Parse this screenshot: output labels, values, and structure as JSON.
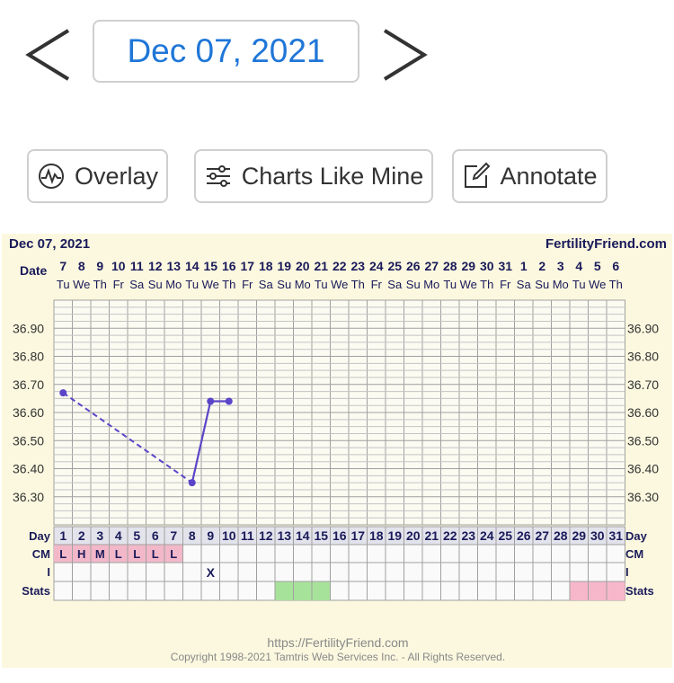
{
  "nav": {
    "date": "Dec 07, 2021",
    "prev_icon": "chevron-left-icon",
    "next_icon": "chevron-right-icon"
  },
  "toolbar": {
    "overlay_label": "Overlay",
    "overlay_icon": "pulse-circle-icon",
    "charts_like_mine_label": "Charts Like Mine",
    "charts_like_mine_icon": "sliders-icon",
    "annotate_label": "Annotate",
    "annotate_icon": "edit-icon"
  },
  "chart_header": {
    "title": "Dec 07, 2021",
    "brand": "FertilityFriend.com",
    "date_row_label": "Date",
    "day_row_label": "Day",
    "cm_row_label": "CM",
    "i_row_label": "I",
    "stats_row_label": "Stats"
  },
  "footer": {
    "url": "https://FertilityFriend.com",
    "copyright": "Copyright 1998-2021 Tamtris Web Services Inc. - All Rights Reserved."
  },
  "colors": {
    "line": "#5a45c8",
    "cm_fill": "#f2b8c9",
    "fertile_fill": "#a7e29a",
    "luteal_fill": "#f7b7cb",
    "day_row_fill": "#e3e3ec",
    "grid": "#a0a0a0",
    "label": "#1a1a5a"
  },
  "chart_data": {
    "type": "line",
    "title": "Dec 07, 2021",
    "ylim": [
      36.2,
      37.0
    ],
    "yticks": [
      "36.90",
      "36.80",
      "36.70",
      "36.60",
      "36.50",
      "36.40",
      "36.30"
    ],
    "dates": [
      "7",
      "8",
      "9",
      "10",
      "11",
      "12",
      "13",
      "14",
      "15",
      "16",
      "17",
      "18",
      "19",
      "20",
      "21",
      "22",
      "23",
      "24",
      "25",
      "26",
      "27",
      "28",
      "29",
      "30",
      "31",
      "1",
      "2",
      "3",
      "4",
      "5",
      "6"
    ],
    "weekdays": [
      "Tu",
      "We",
      "Th",
      "Fr",
      "Sa",
      "Su",
      "Mo",
      "Tu",
      "We",
      "Th",
      "Fr",
      "Sa",
      "Su",
      "Mo",
      "Tu",
      "We",
      "Th",
      "Fr",
      "Sa",
      "Su",
      "Mo",
      "Tu",
      "We",
      "Th",
      "Fr",
      "Sa",
      "Su",
      "Mo",
      "Tu",
      "We",
      "Th"
    ],
    "days": [
      1,
      2,
      3,
      4,
      5,
      6,
      7,
      8,
      9,
      10,
      11,
      12,
      13,
      14,
      15,
      16,
      17,
      18,
      19,
      20,
      21,
      22,
      23,
      24,
      25,
      26,
      27,
      28,
      29,
      30,
      31
    ],
    "temps": [
      {
        "day": 1,
        "value": 36.67
      },
      {
        "day": 8,
        "value": 36.35
      },
      {
        "day": 9,
        "value": 36.64
      },
      {
        "day": 10,
        "value": 36.64
      }
    ],
    "dashed_segments": [
      [
        1,
        8
      ]
    ],
    "solid_segments": [
      [
        8,
        9
      ],
      [
        9,
        10
      ]
    ],
    "cm": [
      "L",
      "H",
      "M",
      "L",
      "L",
      "L",
      "L"
    ],
    "intercourse_days": [
      9
    ],
    "intercourse_mark": "X",
    "fertile_days": [
      13,
      14,
      15
    ],
    "luteal_days": [
      29,
      30,
      31
    ]
  }
}
